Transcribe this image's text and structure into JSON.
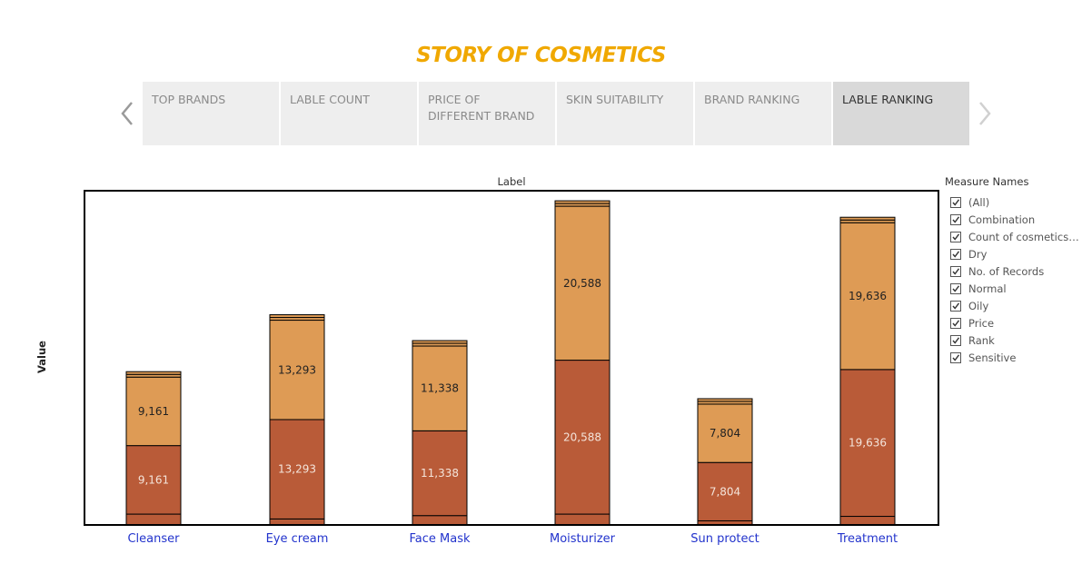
{
  "story": {
    "title": "STORY OF COSMETICS",
    "tabs": [
      {
        "label": "TOP BRANDS",
        "active": false
      },
      {
        "label": "LABLE COUNT",
        "active": false
      },
      {
        "label": "PRICE OF DIFFERENT BRAND",
        "active": false
      },
      {
        "label": "SKIN SUITABILITY",
        "active": false
      },
      {
        "label": "BRAND RANKING",
        "active": false
      },
      {
        "label": "LABLE RANKING",
        "active": true
      }
    ],
    "nav_prev_icon": "chevron-left-icon",
    "nav_next_icon": "chevron-right-icon"
  },
  "legend": {
    "title": "Measure Names",
    "items": [
      "(All)",
      "Combination",
      "Count of cosmetics....",
      "Dry",
      "No. of Records",
      "Normal",
      "Oily",
      "Price",
      "Rank",
      "Sensitive"
    ],
    "checked": true
  },
  "colors": {
    "title": "#f0a800",
    "rank": "#b95b38",
    "price": "#de9b55",
    "category_label": "#2233cc"
  },
  "chart_data": {
    "type": "bar",
    "stacked": true,
    "title": "Label",
    "xlabel": "",
    "ylabel": "Value",
    "categories": [
      "Cleanser",
      "Eye cream",
      "Face Mask",
      "Moisturizer",
      "Sun protect",
      "Treatment"
    ],
    "series": [
      {
        "name": "",
        "values": [
          1450,
          800,
          1250,
          1450,
          550,
          1150
        ]
      },
      {
        "name": "Rank",
        "values": [
          9161,
          13293,
          11338,
          20588,
          7804,
          19636
        ]
      },
      {
        "name": "Price",
        "values": [
          9161,
          13293,
          11338,
          20588,
          7804,
          19636
        ]
      }
    ],
    "ylim": [
      0,
      44700
    ],
    "grid": false,
    "y_ticks_visible": false
  }
}
